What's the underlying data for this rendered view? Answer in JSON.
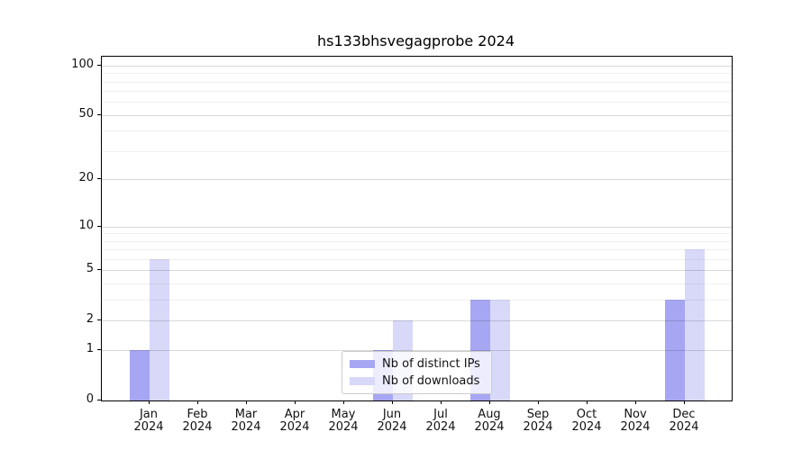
{
  "chart_data": {
    "type": "bar",
    "title": "hs133bhsvegagprobe 2024",
    "months": [
      "Jan",
      "Feb",
      "Mar",
      "Apr",
      "May",
      "Jun",
      "Jul",
      "Aug",
      "Sep",
      "Oct",
      "Nov",
      "Dec"
    ],
    "year": "2024",
    "series": [
      {
        "name": "Nb of distinct IPs",
        "color": "#a6a6f3",
        "values": [
          1,
          0,
          0,
          0,
          0,
          1,
          0,
          3,
          0,
          0,
          0,
          3
        ]
      },
      {
        "name": "Nb of downloads",
        "color": "#d8d8f9",
        "values": [
          6,
          0,
          0,
          0,
          0,
          2,
          0,
          3,
          0,
          0,
          0,
          7
        ]
      }
    ],
    "y_scale": "log1p",
    "y_major_ticks": [
      0,
      1,
      2,
      5,
      10,
      20,
      50,
      100
    ],
    "y_minor_ticks": [
      3,
      4,
      6,
      7,
      8,
      9,
      30,
      40,
      60,
      70,
      80,
      90
    ],
    "ylim": [
      0,
      113
    ],
    "grid": true,
    "legend_position": "lower center"
  }
}
